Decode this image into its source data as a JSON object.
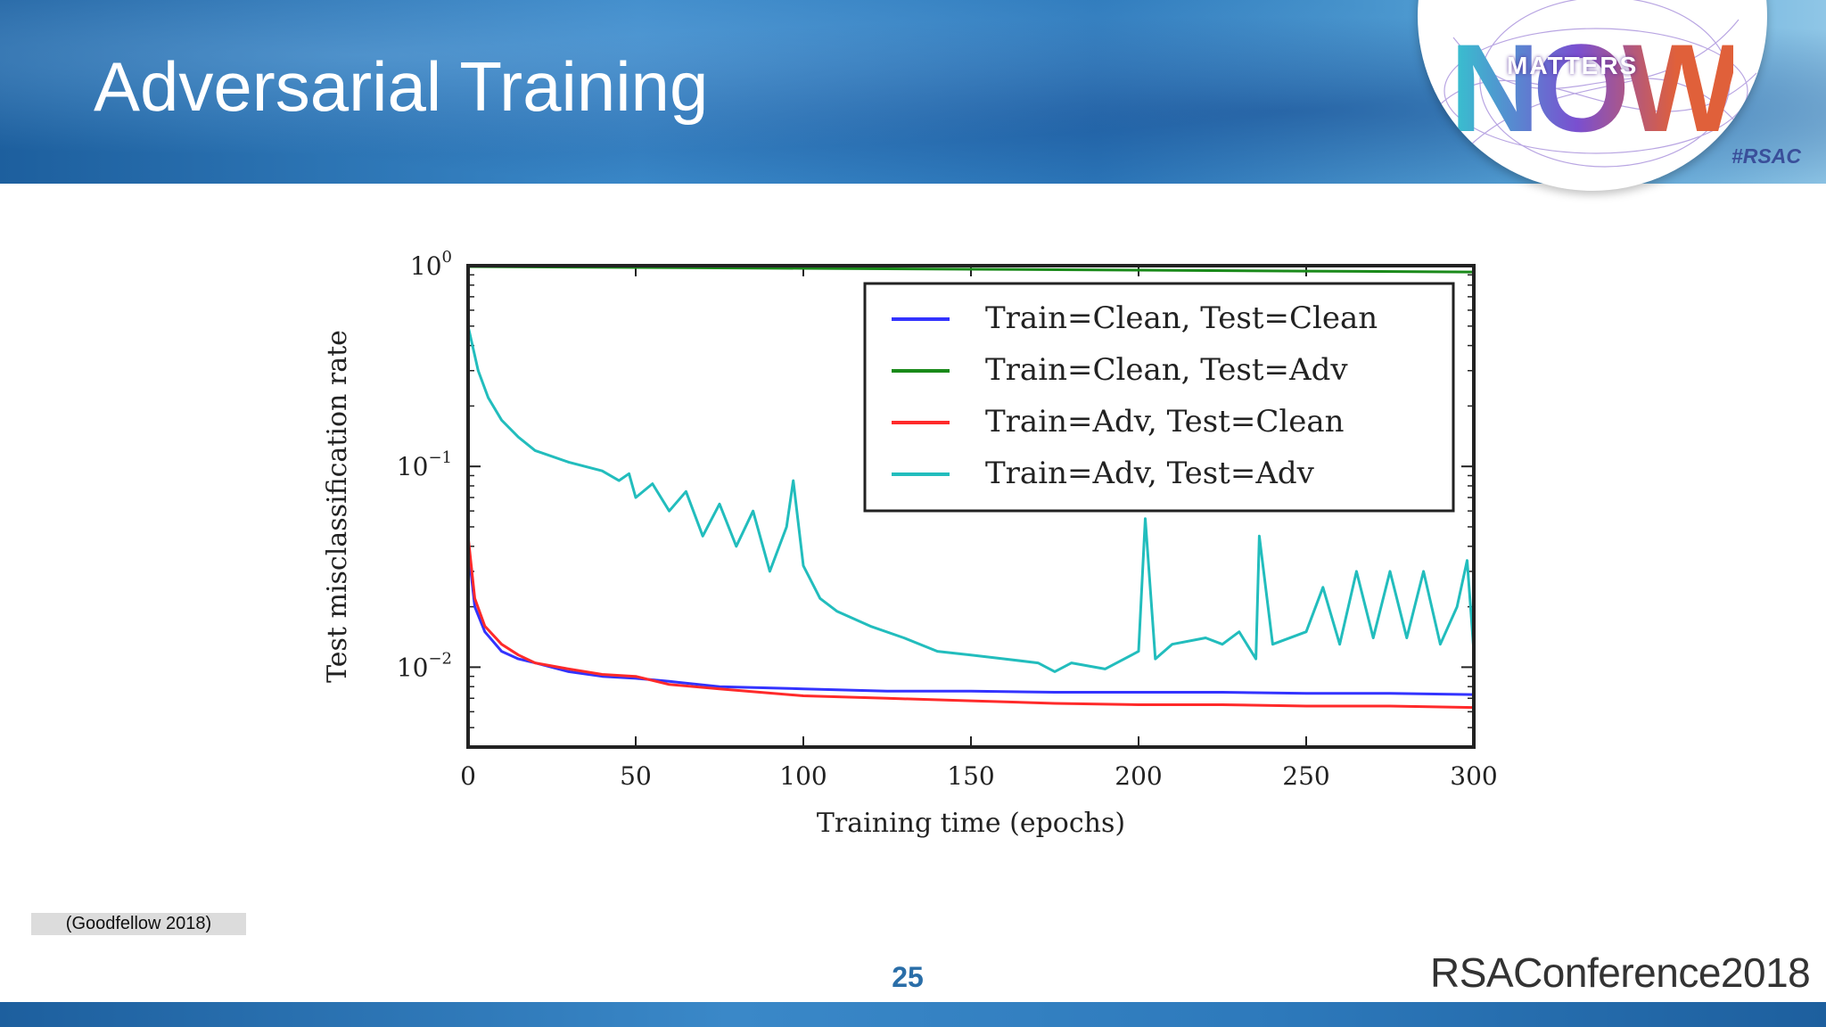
{
  "slide": {
    "title": "Adversarial Training",
    "citation": "(Goodfellow 2018)",
    "page_number": "25"
  },
  "badge": {
    "word": "NOW",
    "sub": "MATTERS",
    "tag": "#RSAC"
  },
  "brand": {
    "logo": "RSAConference2018"
  },
  "colors": {
    "header": "#2d79bb",
    "series_clean_clean": "#3333ff",
    "series_clean_adv": "#1a8a1a",
    "series_adv_clean": "#ff2a2a",
    "series_adv_adv": "#22bdbd"
  },
  "chart_data": {
    "type": "line",
    "title": "",
    "xlabel": "Training time (epochs)",
    "ylabel": "Test misclassification rate",
    "xlim": [
      0,
      300
    ],
    "ylim": [
      0.004,
      1
    ],
    "yscale": "log",
    "x_ticks": [
      "0",
      "50",
      "100",
      "150",
      "200",
      "250",
      "300"
    ],
    "y_ticks": [
      {
        "value": 1,
        "base": "10",
        "exp": "0"
      },
      {
        "value": 0.1,
        "base": "10",
        "exp": "−1"
      },
      {
        "value": 0.01,
        "base": "10",
        "exp": "−2"
      }
    ],
    "legend_position": "top-right",
    "series": [
      {
        "name": "Train=Clean, Test=Clean",
        "color": "#3333ff",
        "x": [
          0,
          2,
          5,
          10,
          15,
          20,
          30,
          40,
          50,
          60,
          75,
          100,
          125,
          150,
          175,
          200,
          225,
          250,
          275,
          300
        ],
        "y": [
          0.04,
          0.02,
          0.015,
          0.012,
          0.011,
          0.0105,
          0.0095,
          0.009,
          0.0088,
          0.0085,
          0.008,
          0.0078,
          0.0076,
          0.0076,
          0.0075,
          0.0075,
          0.0075,
          0.0074,
          0.0074,
          0.0073
        ]
      },
      {
        "name": "Train=Clean, Test=Adv",
        "color": "#1a8a1a",
        "x": [
          0,
          50,
          100,
          150,
          200,
          250,
          300
        ],
        "y": [
          0.99,
          0.98,
          0.97,
          0.96,
          0.95,
          0.94,
          0.93
        ]
      },
      {
        "name": "Train=Adv, Test=Clean",
        "color": "#ff2a2a",
        "x": [
          0,
          2,
          5,
          10,
          15,
          20,
          30,
          40,
          50,
          60,
          75,
          100,
          125,
          150,
          175,
          200,
          225,
          250,
          275,
          300
        ],
        "y": [
          0.045,
          0.022,
          0.016,
          0.013,
          0.0115,
          0.0105,
          0.0098,
          0.0092,
          0.009,
          0.0082,
          0.0078,
          0.0072,
          0.007,
          0.0068,
          0.0066,
          0.0065,
          0.0065,
          0.0064,
          0.0064,
          0.0063
        ]
      },
      {
        "name": "Train=Adv, Test=Adv",
        "color": "#22bdbd",
        "x": [
          0,
          3,
          6,
          10,
          15,
          20,
          30,
          40,
          45,
          48,
          50,
          55,
          60,
          65,
          70,
          75,
          80,
          85,
          90,
          95,
          97,
          100,
          105,
          110,
          120,
          130,
          140,
          150,
          160,
          170,
          175,
          180,
          190,
          200,
          202,
          205,
          210,
          220,
          225,
          230,
          235,
          236,
          240,
          250,
          255,
          260,
          265,
          270,
          275,
          280,
          285,
          290,
          295,
          298,
          300
        ],
        "y": [
          0.5,
          0.3,
          0.22,
          0.17,
          0.14,
          0.12,
          0.105,
          0.095,
          0.085,
          0.092,
          0.07,
          0.082,
          0.06,
          0.075,
          0.045,
          0.065,
          0.04,
          0.06,
          0.03,
          0.05,
          0.085,
          0.032,
          0.022,
          0.019,
          0.016,
          0.014,
          0.012,
          0.0115,
          0.011,
          0.0105,
          0.0095,
          0.0105,
          0.0098,
          0.012,
          0.055,
          0.011,
          0.013,
          0.014,
          0.013,
          0.015,
          0.011,
          0.045,
          0.013,
          0.015,
          0.025,
          0.013,
          0.03,
          0.014,
          0.03,
          0.014,
          0.03,
          0.013,
          0.02,
          0.034,
          0.012
        ]
      }
    ]
  }
}
